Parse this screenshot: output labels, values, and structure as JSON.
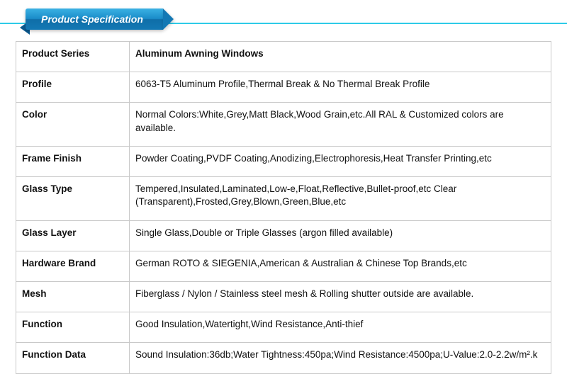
{
  "header": {
    "ribbon_label": "Product Specification",
    "ribbon_gradient_top": "#3ab1e4",
    "ribbon_gradient_bottom": "#1378b4",
    "bar_color": "#2ecbe8"
  },
  "table": {
    "border_color": "#c9c9c9",
    "rows": [
      {
        "label": "Product Series",
        "value": "Aluminum Awning Windows",
        "value_bold": true
      },
      {
        "label": "Profile",
        "value": "6063-T5 Aluminum Profile,Thermal Break & No Thermal Break Profile"
      },
      {
        "label": "Color",
        "value": "Normal Colors:White,Grey,Matt Black,Wood Grain,etc.All RAL & Customized colors are available."
      },
      {
        "label": "Frame Finish",
        "value": "Powder Coating,PVDF Coating,Anodizing,Electrophoresis,Heat Transfer Printing,etc"
      },
      {
        "label": "Glass Type",
        "value": "Tempered,Insulated,Laminated,Low-e,Float,Reflective,Bullet-proof,etc Clear (Transparent),Frosted,Grey,Blown,Green,Blue,etc"
      },
      {
        "label": "Glass Layer",
        "value": "Single Glass,Double or Triple Glasses (argon filled available)"
      },
      {
        "label": "Hardware Brand",
        "value": "German ROTO & SIEGENIA,American & Australian & Chinese Top Brands,etc"
      },
      {
        "label": "Mesh",
        "value": "Fiberglass / Nylon / Stainless steel mesh & Rolling shutter outside are available."
      },
      {
        "label": "Function",
        "value": "Good Insulation,Watertight,Wind Resistance,Anti-thief"
      },
      {
        "label": "Function Data",
        "value": "Sound Insulation:36db;Water Tightness:450pa;Wind Resistance:4500pa;U-Value:2.0-2.2w/m².k"
      }
    ]
  }
}
